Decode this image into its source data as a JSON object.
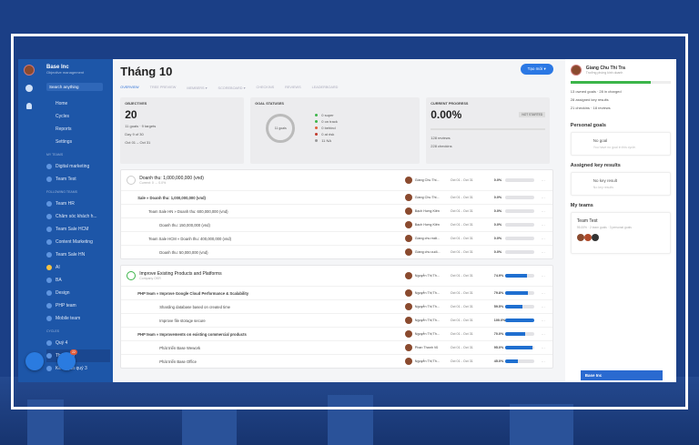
{
  "sidebar": {
    "org": "Base Inc",
    "subtitle": "Objective management",
    "search_placeholder": "Search anything",
    "nav": [
      "Home",
      "Cycles",
      "Reports",
      "Settings"
    ],
    "my_teams_label": "MY TEAMS",
    "my_teams": [
      "Digital marketing",
      "Team Test"
    ],
    "following_label": "FOLLOWING TEAMS",
    "following": [
      "Team HR",
      "Chăm sóc khách h...",
      "Team Sale HCM",
      "Content Marketing",
      "Team Sale HN",
      "AI",
      "BA",
      "Design",
      "PHP team",
      "Mobile team"
    ],
    "cycles_label": "CYCLES",
    "cycles": [
      "Quý 4",
      "Tháng 10",
      "Kế hoạch quý 3"
    ],
    "badge": "22"
  },
  "header": {
    "title": "Tháng 10",
    "create_label": "Tạo mới ▾",
    "tabs": [
      "OVERVIEW",
      "TREE PREVIEW",
      "MEMBERS ▾",
      "SCOREBOARD ▾",
      "CHECKINS",
      "REVIEWS",
      "LEADERBOARD"
    ]
  },
  "objectives": {
    "label": "OBJECTIVES",
    "value": "20",
    "lines": [
      "11 goals · 9 targets",
      "Day 9 of 30",
      "Oct 01 – Oct 31"
    ]
  },
  "statuses": {
    "label": "GOAL STATUSES",
    "center": "11 goals",
    "items": [
      {
        "t": "0 super",
        "c": "#3cb54a"
      },
      {
        "t": "0 on track",
        "c": "#3cb54a"
      },
      {
        "t": "0 behind",
        "c": "#e0603a"
      },
      {
        "t": "0 at risk",
        "c": "#c0392b"
      },
      {
        "t": "11 NA",
        "c": "#999"
      }
    ]
  },
  "progress": {
    "label": "CURRENT PROGRESS",
    "value": "0.00%",
    "badge": "NOT STARTED",
    "lines": [
      "128 reviews",
      "228 checkins"
    ]
  },
  "goals": [
    {
      "rows": [
        {
          "name": "Doanh thu: 1,000,000,000 (vnd)",
          "sub": "Current: 0 → 0.0%",
          "owner": "Giang Chu Thi...",
          "dates": "Oct 01 - Oct 31",
          "pct": "0.0%",
          "v": 0,
          "lvl": 0,
          "ring": "#ccc"
        },
        {
          "name": "Sale » Doanh thu: 1,000,000,000 (vnd)",
          "owner": "Giang Chu Thi...",
          "dates": "Oct 01 - Oct 31",
          "pct": "0.0%",
          "v": 0,
          "lvl": 1
        },
        {
          "name": "Team Sale HN » Doanh thu: 600,000,000 (vnd)",
          "owner": "Bạch Hưng Kiên",
          "dates": "Oct 01 - Oct 31",
          "pct": "0.0%",
          "v": 0,
          "lvl": 2
        },
        {
          "name": "Doanh thu: 150,000,000 (vnd)",
          "owner": "Bạch Hưng Kiên",
          "dates": "Oct 01 - Oct 31",
          "pct": "0.0%",
          "v": 0,
          "lvl": 3
        },
        {
          "name": "Team Sale HCM » Doanh thu: 400,000,000 (vnd)",
          "owner": "Giang chu mất...",
          "dates": "Oct 01 - Oct 31",
          "pct": "0.0%",
          "v": 0,
          "lvl": 2
        },
        {
          "name": "Doanh thu: 50,000,000 (vnd)",
          "owner": "Giang chu cuối...",
          "dates": "Oct 01 - Oct 31",
          "pct": "0.0%",
          "v": 0,
          "lvl": 3
        }
      ]
    },
    {
      "rows": [
        {
          "name": "Improve Existing Products and Platforms",
          "sub": "Company OKR",
          "owner": "Nguyễn Thị Th...",
          "dates": "Oct 01 - Oct 31",
          "pct": "74.9%",
          "v": 74.9,
          "lvl": 0,
          "ring": "#3cb54a"
        },
        {
          "name": "PHP team » Improve Google Cloud Performance & Scalability",
          "owner": "Nguyễn Thị Th...",
          "dates": "Oct 01 - Oct 31",
          "pct": "79.8%",
          "v": 79.8,
          "lvl": 1
        },
        {
          "name": "Sharding database based on created time",
          "owner": "Nguyễn Thị Th...",
          "dates": "Oct 01 - Oct 31",
          "pct": "59.5%",
          "v": 59.5,
          "lvl": 3
        },
        {
          "name": "Improve file storage secure",
          "owner": "Nguyễn Thị Th...",
          "dates": "Oct 01 - Oct 31",
          "pct": "100.0%",
          "v": 100,
          "lvl": 3
        },
        {
          "name": "PHP team » Improvements on existing commercial products",
          "owner": "Nguyễn Thị Th...",
          "dates": "Oct 01 - Oct 31",
          "pct": "70.0%",
          "v": 70,
          "lvl": 1
        },
        {
          "name": "Phát triển Base Wework",
          "owner": "Phan Thanh Vũ",
          "dates": "Oct 01 - Oct 31",
          "pct": "95.0%",
          "v": 95,
          "lvl": 3
        },
        {
          "name": "Phát triển Base Office",
          "owner": "Nguyễn Thị Th...",
          "dates": "Oct 01 - Oct 31",
          "pct": "45.0%",
          "v": 45,
          "lvl": 3
        }
      ]
    }
  ],
  "right": {
    "name": "Giang Chu Thi Tra",
    "sub": "Trưởng phòng kinh doanh",
    "progress": 80,
    "stats": [
      "13 owned goals · 28 in charged",
      "28 assigned key results",
      "21 checkins · 18 reviews"
    ],
    "personal_label": "Personal goals",
    "no_goal": "No goal",
    "no_goal_sub": "You have no goal in this cycle.",
    "assigned_label": "Assigned key results",
    "no_kr": "No key result",
    "no_kr_sub": "No key results",
    "teams_label": "My teams",
    "team": "Team Test",
    "team_sub": "95.00% · 2 team goals · 3 personal goals"
  },
  "chat": {
    "label": "Base Inc"
  }
}
